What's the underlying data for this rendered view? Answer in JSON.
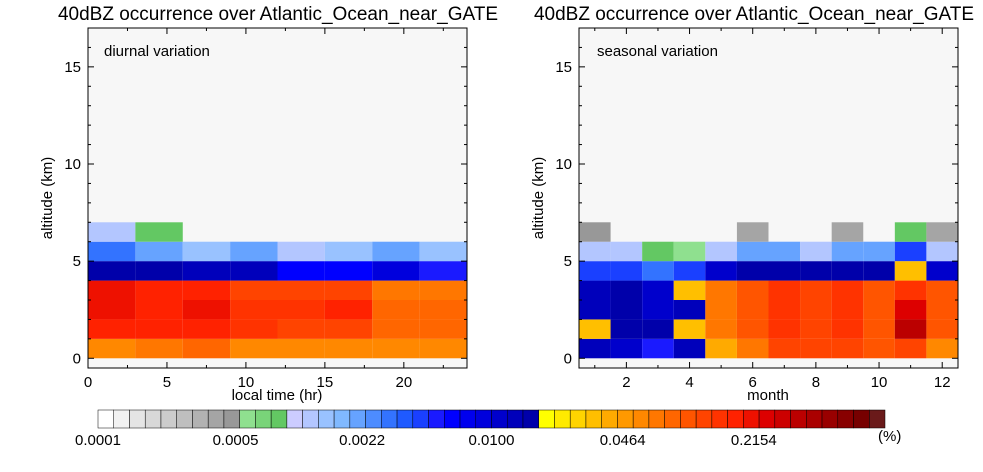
{
  "chart_data": [
    {
      "type": "heatmap",
      "title": "40dBZ occurrence over Atlantic_Ocean_near_GATE",
      "annotation": "diurnal variation",
      "xlabel": "local time (hr)",
      "ylabel": "altitude (km)",
      "xlim": [
        0,
        24
      ],
      "ylim": [
        -0.5,
        17
      ],
      "xticks": [
        "0",
        "5",
        "10",
        "15",
        "20"
      ],
      "xtick_values": [
        0,
        5,
        10,
        15,
        20
      ],
      "yticks": [
        "0",
        "5",
        "10",
        "15"
      ],
      "ytick_values": [
        0,
        5,
        10,
        15
      ],
      "x_edges": [
        0,
        3,
        6,
        9,
        12,
        15,
        18,
        21,
        24
      ],
      "y_edges": [
        0,
        1,
        2,
        3,
        4,
        5,
        6,
        7
      ],
      "values": [
        [
          0.062,
          0.064,
          0.079,
          0.062,
          0.062,
          0.062,
          0.056,
          0.056
        ],
        [
          0.17,
          0.17,
          0.19,
          0.14,
          0.13,
          0.13,
          0.083,
          0.083
        ],
        [
          0.21,
          0.19,
          0.2,
          0.15,
          0.15,
          0.17,
          0.088,
          0.088
        ],
        [
          0.21,
          0.17,
          0.17,
          0.11,
          0.12,
          0.11,
          0.073,
          0.073
        ],
        [
          0.0145,
          0.0145,
          0.0135,
          0.0128,
          0.0062,
          0.0062,
          0.0086,
          0.0052
        ],
        [
          0.0028,
          0.002,
          0.0014,
          0.002,
          0.0013,
          0.0014,
          0.002,
          0.0014
        ],
        [
          0.0012,
          0.0008,
          null,
          null,
          null,
          null,
          null,
          null
        ]
      ]
    },
    {
      "type": "heatmap",
      "title": "40dBZ occurrence over Atlantic_Ocean_near_GATE",
      "annotation": "seasonal variation",
      "xlabel": "month",
      "ylabel": "altitude (km)",
      "xlim": [
        0.5,
        12.5
      ],
      "ylim": [
        -0.5,
        17
      ],
      "xticks": [
        "2",
        "4",
        "6",
        "8",
        "10",
        "12"
      ],
      "xtick_values": [
        2,
        4,
        6,
        8,
        10,
        12
      ],
      "yticks": [
        "0",
        "5",
        "10",
        "15"
      ],
      "ytick_values": [
        0,
        5,
        10,
        15
      ],
      "x_edges": [
        0.5,
        1.5,
        2.5,
        3.5,
        4.5,
        5.5,
        6.5,
        7.5,
        8.5,
        9.5,
        10.5,
        11.5,
        12.5
      ],
      "y_edges": [
        0,
        1,
        2,
        3,
        4,
        5,
        6,
        7
      ],
      "values": [
        [
          0.0135,
          0.011,
          0.0048,
          0.0135,
          0.042,
          0.075,
          0.13,
          0.13,
          0.13,
          0.1,
          0.13,
          0.062
        ],
        [
          0.036,
          0.0145,
          0.0145,
          0.036,
          0.064,
          0.1,
          0.15,
          0.13,
          0.15,
          0.1,
          0.37,
          0.1
        ],
        [
          0.0135,
          0.0145,
          0.011,
          0.0135,
          0.072,
          0.1,
          0.15,
          0.13,
          0.15,
          0.1,
          0.26,
          0.1
        ],
        [
          0.0135,
          0.0145,
          0.011,
          0.036,
          0.072,
          0.1,
          0.15,
          0.13,
          0.15,
          0.1,
          0.15,
          0.1
        ],
        [
          0.004,
          0.004,
          0.003,
          0.004,
          0.011,
          0.0145,
          0.0145,
          0.0145,
          0.0145,
          0.0145,
          0.036,
          0.011
        ],
        [
          0.0013,
          0.0013,
          0.0008,
          0.0006,
          0.0012,
          0.002,
          0.002,
          0.0011,
          0.002,
          0.0022,
          0.0042,
          0.0013
        ],
        [
          0.0005,
          null,
          null,
          null,
          null,
          0.0004,
          null,
          null,
          0.0004,
          null,
          0.0009,
          0.0004
        ]
      ]
    }
  ],
  "colorbar": {
    "tick_labels": [
      "0.0001",
      "0.0005",
      "0.0022",
      "0.0100",
      "0.0464",
      "0.2154"
    ],
    "unit": "(%)",
    "min": 0.0001,
    "max": 1.0,
    "scale": "log",
    "colors": [
      "#ffffff",
      "#f2f2f2",
      "#e5e5e5",
      "#d8d8d8",
      "#cccccc",
      "#bfbfbf",
      "#b2b2b2",
      "#a5a5a5",
      "#989898",
      "#8fe08f",
      "#79d479",
      "#63c863",
      "#ccccff",
      "#b3c6ff",
      "#99c2ff",
      "#80b9ff",
      "#66a3ff",
      "#4d8cff",
      "#3373ff",
      "#1f5aff",
      "#1a40ff",
      "#1a1aff",
      "#0000ff",
      "#0000ee",
      "#0000dd",
      "#0000cc",
      "#0000bb",
      "#0000aa",
      "#ffff00",
      "#ffea00",
      "#ffd400",
      "#ffbf00",
      "#ffaa00",
      "#ff9900",
      "#ff8800",
      "#ff7700",
      "#ff6600",
      "#ff5500",
      "#ff4400",
      "#ff3300",
      "#ff2200",
      "#ee1100",
      "#dd0000",
      "#cc0000",
      "#bb0000",
      "#aa0000",
      "#990000",
      "#880000",
      "#770000",
      "#6a1a1a"
    ]
  }
}
